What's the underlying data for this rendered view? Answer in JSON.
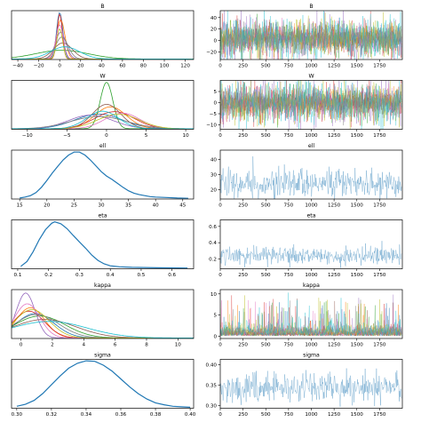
{
  "chart_data": {
    "type": "trace-plot-grid",
    "rows": [
      {
        "var": "B",
        "kde": {
          "title": "B",
          "xticks": [
            "−40",
            "−20",
            "0",
            "20",
            "40",
            "60",
            "80",
            "100",
            "120"
          ],
          "xlim": [
            -46,
            128
          ],
          "ylim": [
            0,
            1
          ],
          "curves": [
            {
              "color": "#1f77b4",
              "peak": 0,
              "width": 3,
              "height": 0.95
            },
            {
              "color": "#ff7f0e",
              "peak": 1,
              "width": 4,
              "height": 0.8
            },
            {
              "color": "#2ca02c",
              "peak": 2,
              "width": 25,
              "height": 0.18
            },
            {
              "color": "#d62728",
              "peak": 0,
              "width": 2.5,
              "height": 0.92
            },
            {
              "color": "#9467bd",
              "peak": 1,
              "width": 5,
              "height": 0.55
            },
            {
              "color": "#8c564b",
              "peak": 3,
              "width": 9,
              "height": 0.33
            },
            {
              "color": "#e377c2",
              "peak": 0,
              "width": 3.5,
              "height": 0.7
            },
            {
              "color": "#7f7f7f",
              "peak": 2,
              "width": 6,
              "height": 0.45
            },
            {
              "color": "#bcbd22",
              "peak": 0,
              "width": 2.8,
              "height": 0.62
            },
            {
              "color": "#17becf",
              "peak": 5,
              "width": 14,
              "height": 0.25
            }
          ]
        },
        "trace": {
          "title": "B",
          "xticks": [
            "0",
            "250",
            "500",
            "750",
            "1000",
            "1250",
            "1500",
            "1750"
          ],
          "yticks": [
            "−20",
            "0",
            "20",
            "40"
          ],
          "xlim": [
            0,
            2000
          ],
          "ylim": [
            -33,
            52
          ],
          "style": "multi",
          "center": 3,
          "spread": 12
        }
      },
      {
        "var": "W",
        "kde": {
          "title": "W",
          "xticks": [
            "−10",
            "−5",
            "0",
            "5",
            "10"
          ],
          "xlim": [
            -12,
            11
          ],
          "ylim": [
            0,
            1
          ],
          "curves": [
            {
              "color": "#1f77b4",
              "peak": -1,
              "width": 3.0,
              "height": 0.3
            },
            {
              "color": "#ff7f0e",
              "peak": 0.5,
              "width": 2.0,
              "height": 0.45
            },
            {
              "color": "#2ca02c",
              "peak": 0,
              "width": 0.8,
              "height": 0.95
            },
            {
              "color": "#d62728",
              "peak": 1,
              "width": 2.5,
              "height": 0.35
            },
            {
              "color": "#9467bd",
              "peak": -2,
              "width": 2.8,
              "height": 0.28
            },
            {
              "color": "#8c564b",
              "peak": 0,
              "width": 1.8,
              "height": 0.5
            },
            {
              "color": "#e377c2",
              "peak": 2,
              "width": 2.2,
              "height": 0.32
            },
            {
              "color": "#7f7f7f",
              "peak": -1,
              "width": 3.5,
              "height": 0.25
            },
            {
              "color": "#bcbd22",
              "peak": 1.5,
              "width": 2.6,
              "height": 0.3
            },
            {
              "color": "#17becf",
              "peak": -0.5,
              "width": 2.0,
              "height": 0.36
            }
          ]
        },
        "trace": {
          "title": "W",
          "xticks": [
            "0",
            "250",
            "500",
            "750",
            "1000",
            "1250",
            "1500",
            "1750"
          ],
          "yticks": [
            "−10",
            "−5",
            "0",
            "5"
          ],
          "xlim": [
            0,
            2000
          ],
          "ylim": [
            -12,
            10
          ],
          "style": "multi",
          "center": 0,
          "spread": 3.2
        }
      },
      {
        "var": "ell",
        "kde": {
          "title": "ell",
          "xticks": [
            "15",
            "20",
            "25",
            "30",
            "35",
            "40",
            "45"
          ],
          "xlim": [
            13.5,
            47
          ],
          "ylim": [
            0,
            1
          ],
          "points": [
            [
              15,
              0.02
            ],
            [
              16,
              0.04
            ],
            [
              17,
              0.07
            ],
            [
              18,
              0.13
            ],
            [
              19,
              0.24
            ],
            [
              20,
              0.38
            ],
            [
              21,
              0.53
            ],
            [
              22,
              0.67
            ],
            [
              23,
              0.8
            ],
            [
              24,
              0.9
            ],
            [
              25,
              0.96
            ],
            [
              26,
              0.96
            ],
            [
              27,
              0.9
            ],
            [
              28,
              0.8
            ],
            [
              29,
              0.68
            ],
            [
              30,
              0.56
            ],
            [
              31,
              0.47
            ],
            [
              32,
              0.4
            ],
            [
              33,
              0.32
            ],
            [
              34,
              0.24
            ],
            [
              35,
              0.17
            ],
            [
              36,
              0.12
            ],
            [
              37,
              0.09
            ],
            [
              38,
              0.07
            ],
            [
              39,
              0.05
            ],
            [
              40,
              0.04
            ],
            [
              42,
              0.03
            ],
            [
              44,
              0.02
            ],
            [
              46,
              0.015
            ]
          ]
        },
        "trace": {
          "title": "ell",
          "xticks": [
            "0",
            "250",
            "500",
            "750",
            "1000",
            "1250",
            "1500",
            "1750"
          ],
          "yticks": [
            "20",
            "30",
            "40"
          ],
          "xlim": [
            0,
            2000
          ],
          "ylim": [
            14,
            46
          ],
          "style": "single",
          "center": 24,
          "spread": 4.5
        }
      },
      {
        "var": "eta",
        "kde": {
          "title": "eta",
          "xticks": [
            "0.1",
            "0.2",
            "0.3",
            "0.4",
            "0.5",
            "0.6"
          ],
          "xlim": [
            0.08,
            0.67
          ],
          "ylim": [
            0,
            1
          ],
          "points": [
            [
              0.11,
              0.05
            ],
            [
              0.13,
              0.15
            ],
            [
              0.15,
              0.35
            ],
            [
              0.17,
              0.6
            ],
            [
              0.19,
              0.8
            ],
            [
              0.21,
              0.93
            ],
            [
              0.22,
              0.96
            ],
            [
              0.24,
              0.92
            ],
            [
              0.26,
              0.82
            ],
            [
              0.28,
              0.68
            ],
            [
              0.3,
              0.55
            ],
            [
              0.32,
              0.42
            ],
            [
              0.34,
              0.28
            ],
            [
              0.36,
              0.17
            ],
            [
              0.38,
              0.1
            ],
            [
              0.4,
              0.06
            ],
            [
              0.43,
              0.04
            ],
            [
              0.47,
              0.03
            ],
            [
              0.55,
              0.02
            ],
            [
              0.65,
              0.015
            ]
          ]
        },
        "trace": {
          "title": "eta",
          "xticks": [
            "0",
            "250",
            "500",
            "750",
            "1000",
            "1250",
            "1500",
            "1750"
          ],
          "yticks": [
            "0.2",
            "0.4",
            "0.6"
          ],
          "xlim": [
            0,
            2000
          ],
          "ylim": [
            0.08,
            0.68
          ],
          "style": "single",
          "center": 0.24,
          "spread": 0.055
        }
      },
      {
        "var": "kappa",
        "kde": {
          "title": "kappa",
          "xticks": [
            "0",
            "2",
            "4",
            "6",
            "8",
            "10"
          ],
          "xlim": [
            -0.6,
            11
          ],
          "ylim": [
            0,
            1
          ],
          "curves": [
            {
              "color": "#1f77b4",
              "peak": 0.9,
              "width": 1.2,
              "height": 0.5
            },
            {
              "color": "#ff7f0e",
              "peak": 0.6,
              "width": 0.9,
              "height": 0.62
            },
            {
              "color": "#2ca02c",
              "peak": 1.2,
              "width": 1.6,
              "height": 0.45
            },
            {
              "color": "#d62728",
              "peak": 0.5,
              "width": 1.0,
              "height": 0.55
            },
            {
              "color": "#9467bd",
              "peak": 0.3,
              "width": 0.6,
              "height": 0.92
            },
            {
              "color": "#8c564b",
              "peak": 1.5,
              "width": 2.0,
              "height": 0.38
            },
            {
              "color": "#e377c2",
              "peak": 0.4,
              "width": 0.8,
              "height": 0.7
            },
            {
              "color": "#7f7f7f",
              "peak": 1.0,
              "width": 1.4,
              "height": 0.48
            },
            {
              "color": "#bcbd22",
              "peak": 0.7,
              "width": 1.1,
              "height": 0.58
            },
            {
              "color": "#17becf",
              "peak": 1.8,
              "width": 2.4,
              "height": 0.34
            }
          ]
        },
        "trace": {
          "title": "kappa",
          "xticks": [
            "0",
            "250",
            "500",
            "750",
            "1000",
            "1250",
            "1500",
            "1750"
          ],
          "yticks": [
            "0",
            "5",
            "10"
          ],
          "xlim": [
            0,
            2000
          ],
          "ylim": [
            -0.5,
            11
          ],
          "style": "multi-positive",
          "center": 1.2,
          "spread": 1.2
        }
      },
      {
        "var": "sigma",
        "kde": {
          "title": "sigma",
          "xticks": [
            "0.30",
            "0.32",
            "0.34",
            "0.36",
            "0.38",
            "0.40"
          ],
          "xlim": [
            0.297,
            0.402
          ],
          "ylim": [
            0,
            1
          ],
          "points": [
            [
              0.3,
              0.04
            ],
            [
              0.305,
              0.08
            ],
            [
              0.31,
              0.16
            ],
            [
              0.315,
              0.3
            ],
            [
              0.32,
              0.48
            ],
            [
              0.325,
              0.66
            ],
            [
              0.33,
              0.82
            ],
            [
              0.335,
              0.92
            ],
            [
              0.34,
              0.97
            ],
            [
              0.345,
              0.96
            ],
            [
              0.35,
              0.88
            ],
            [
              0.355,
              0.76
            ],
            [
              0.36,
              0.6
            ],
            [
              0.365,
              0.44
            ],
            [
              0.37,
              0.3
            ],
            [
              0.375,
              0.19
            ],
            [
              0.38,
              0.11
            ],
            [
              0.385,
              0.07
            ],
            [
              0.39,
              0.04
            ],
            [
              0.395,
              0.03
            ],
            [
              0.4,
              0.02
            ]
          ]
        },
        "trace": {
          "title": "sigma",
          "xticks": [
            "0",
            "250",
            "500",
            "750",
            "1000",
            "1250",
            "1500",
            "1750"
          ],
          "yticks": [
            "0.30",
            "0.35",
            "0.40"
          ],
          "xlim": [
            0,
            2000
          ],
          "ylim": [
            0.293,
            0.413
          ],
          "style": "single",
          "center": 0.342,
          "spread": 0.017
        }
      }
    ]
  }
}
